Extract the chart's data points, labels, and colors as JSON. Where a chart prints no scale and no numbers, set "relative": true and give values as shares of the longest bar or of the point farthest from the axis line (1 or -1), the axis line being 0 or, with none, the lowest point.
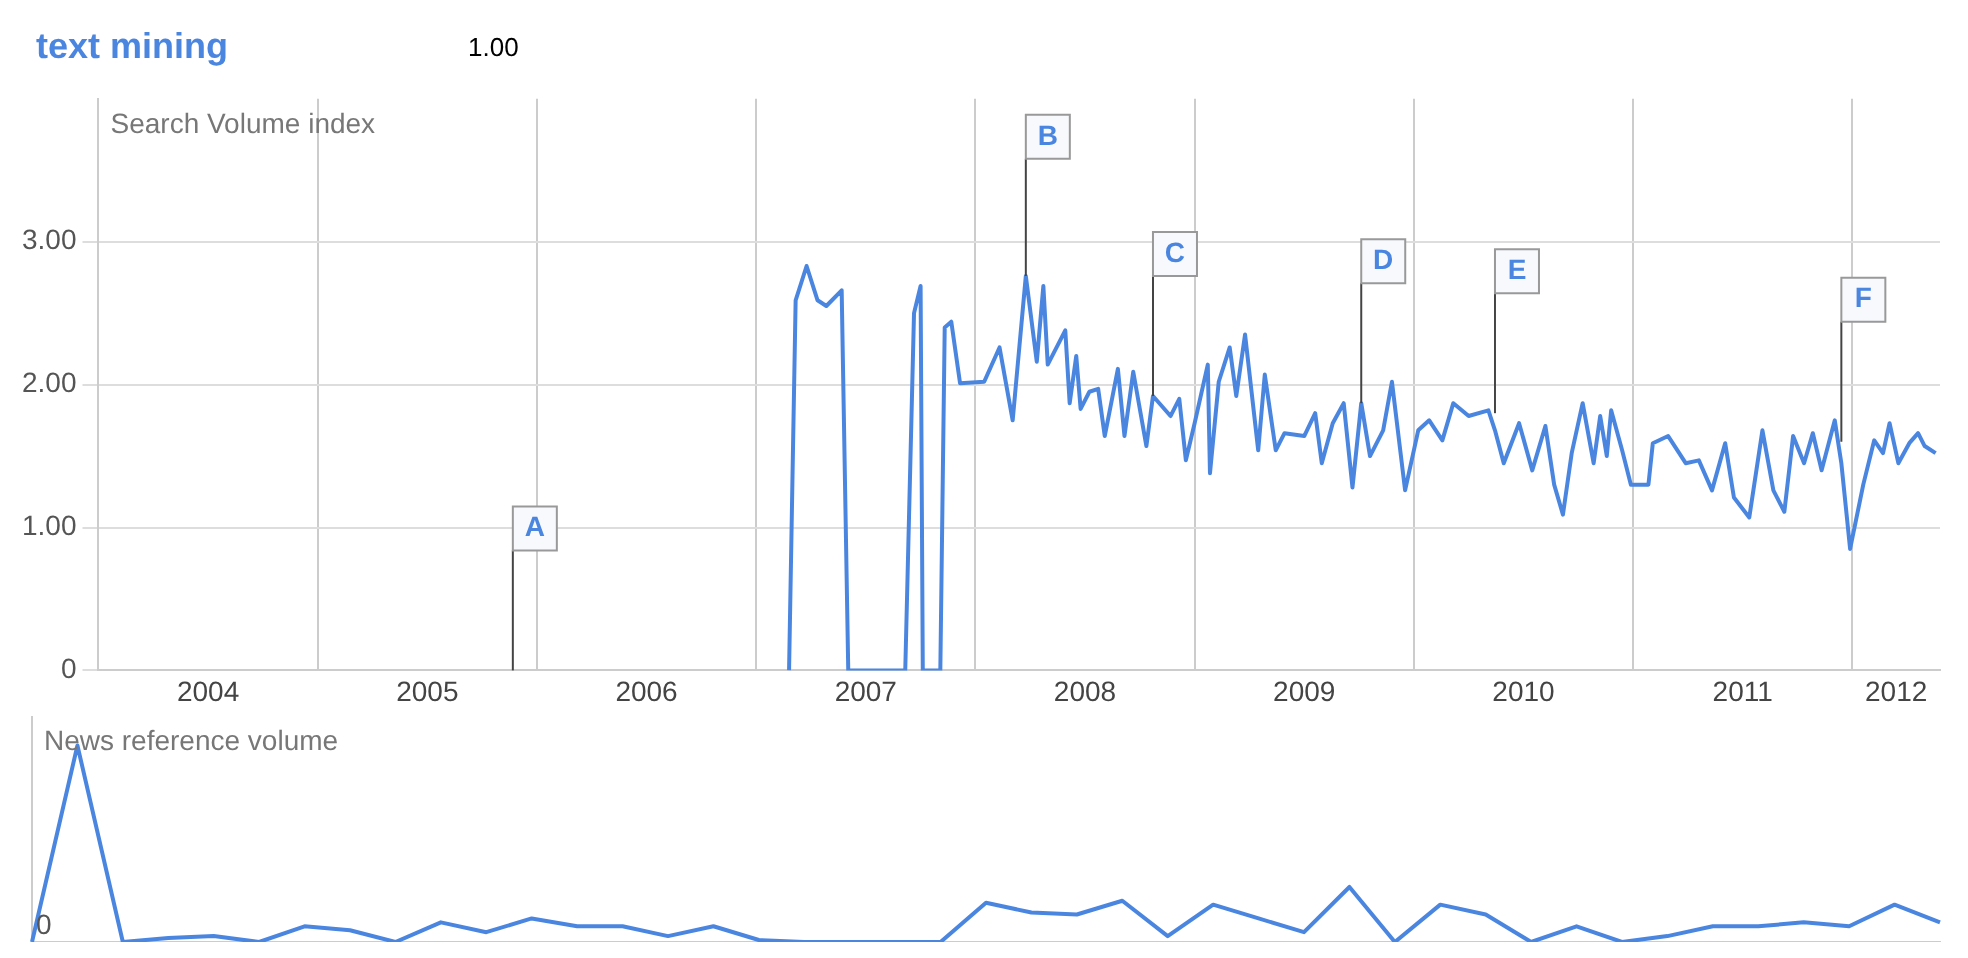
{
  "chart_data": [
    {
      "type": "line",
      "title": "text mining",
      "subtitle": "1.00",
      "ylabel": "Search Volume index",
      "xlim": [
        2004,
        2012.4
      ],
      "ylim": [
        0,
        4
      ],
      "xticks": [
        {
          "value": 2004.5,
          "label": "2004"
        },
        {
          "value": 2005,
          "label": null
        },
        {
          "value": 2005.5,
          "label": "2005"
        },
        {
          "value": 2006,
          "label": null
        },
        {
          "value": 2006.5,
          "label": "2006"
        },
        {
          "value": 2007,
          "label": null
        },
        {
          "value": 2007.5,
          "label": "2007"
        },
        {
          "value": 2008,
          "label": null
        },
        {
          "value": 2008.5,
          "label": "2008"
        },
        {
          "value": 2009,
          "label": null
        },
        {
          "value": 2009.5,
          "label": "2009"
        },
        {
          "value": 2010,
          "label": null
        },
        {
          "value": 2010.5,
          "label": "2010"
        },
        {
          "value": 2011,
          "label": null
        },
        {
          "value": 2011.5,
          "label": "2011"
        },
        {
          "value": 2012,
          "label": null
        },
        {
          "value": 2012.2,
          "label": "2012"
        }
      ],
      "yticks": [
        0,
        {
          "value": 1,
          "label": "1.00"
        },
        {
          "value": 2,
          "label": "2.00"
        },
        {
          "value": 3,
          "label": "3.00"
        }
      ],
      "grid": true,
      "legend": false,
      "marker": "none",
      "ref_lines": [
        {
          "axis": "x",
          "value": 2005.89,
          "label": "A"
        }
      ],
      "annotations": [
        {
          "text": "B",
          "x": 2008.23,
          "y": 2.76
        },
        {
          "text": "C",
          "x": 2008.81,
          "y": 1.92
        },
        {
          "text": "D",
          "x": 2009.76,
          "y": 1.87
        },
        {
          "text": "E",
          "x": 2010.37,
          "y": 1.8
        },
        {
          "text": "F",
          "x": 2011.95,
          "y": 1.6
        }
      ],
      "series": [
        {
          "color": "#4a86e0",
          "x": [
            2007.15,
            2007.18,
            2007.23,
            2007.28,
            2007.32,
            2007.39,
            2007.42,
            2007.68,
            2007.72,
            2007.75,
            2007.76,
            2007.84,
            2007.86,
            2007.89,
            2007.93,
            2008.04,
            2008.11,
            2008.17,
            2008.23,
            2008.28,
            2008.31,
            2008.33,
            2008.41,
            2008.43,
            2008.46,
            2008.48,
            2008.52,
            2008.56,
            2008.59,
            2008.65,
            2008.68,
            2008.72,
            2008.78,
            2008.81,
            2008.89,
            2008.93,
            2008.96,
            2009.0,
            2009.06,
            2009.07,
            2009.11,
            2009.16,
            2009.19,
            2009.23,
            2009.29,
            2009.32,
            2009.37,
            2009.41,
            2009.5,
            2009.55,
            2009.58,
            2009.63,
            2009.68,
            2009.72,
            2009.76,
            2009.8,
            2009.86,
            2009.9,
            2009.96,
            2010.02,
            2010.07,
            2010.13,
            2010.18,
            2010.25,
            2010.34,
            2010.37,
            2010.41,
            2010.48,
            2010.54,
            2010.6,
            2010.64,
            2010.68,
            2010.72,
            2010.77,
            2010.82,
            2010.85,
            2010.88,
            2010.9,
            2010.95,
            2010.99,
            2011.07,
            2011.09,
            2011.16,
            2011.24,
            2011.3,
            2011.36,
            2011.42,
            2011.46,
            2011.53,
            2011.59,
            2011.64,
            2011.69,
            2011.73,
            2011.78,
            2011.82,
            2011.86,
            2011.92,
            2011.95,
            2011.99,
            2012.05,
            2012.1,
            2012.14,
            2012.17,
            2012.21,
            2012.26,
            2012.3,
            2012.33,
            2012.38
          ],
          "values": [
            0,
            2.59,
            2.83,
            2.59,
            2.55,
            2.66,
            0,
            0,
            2.5,
            2.69,
            0,
            0,
            2.4,
            2.44,
            2.01,
            2.02,
            2.26,
            1.75,
            2.76,
            2.16,
            2.69,
            2.14,
            2.38,
            1.87,
            2.2,
            1.83,
            1.95,
            1.97,
            1.64,
            2.11,
            1.64,
            2.09,
            1.57,
            1.92,
            1.78,
            1.9,
            1.47,
            1.73,
            2.14,
            1.38,
            2.02,
            2.26,
            1.92,
            2.35,
            1.54,
            2.07,
            1.54,
            1.66,
            1.64,
            1.8,
            1.45,
            1.73,
            1.87,
            1.28,
            1.87,
            1.5,
            1.68,
            2.02,
            1.26,
            1.68,
            1.75,
            1.61,
            1.87,
            1.78,
            1.82,
            1.68,
            1.45,
            1.73,
            1.4,
            1.71,
            1.3,
            1.09,
            1.52,
            1.87,
            1.45,
            1.78,
            1.5,
            1.82,
            1.54,
            1.3,
            1.3,
            1.59,
            1.64,
            1.45,
            1.47,
            1.26,
            1.59,
            1.21,
            1.07,
            1.68,
            1.26,
            1.11,
            1.64,
            1.45,
            1.66,
            1.4,
            1.75,
            1.45,
            0.85,
            1.3,
            1.61,
            1.52,
            1.73,
            1.45,
            1.59,
            1.66,
            1.57,
            1.52
          ]
        }
      ]
    },
    {
      "type": "line",
      "ylabel": "News reference volume",
      "relative": true,
      "tick_labels": false,
      "categories": [
        null,
        null,
        null,
        null,
        null,
        null,
        null,
        null,
        null,
        null,
        null,
        null,
        null,
        null,
        null,
        null,
        null,
        null,
        null,
        null,
        null,
        null,
        null,
        null,
        null,
        null,
        null,
        null,
        null,
        null,
        null,
        null,
        null,
        null,
        null,
        null,
        null,
        null,
        null,
        null,
        null,
        null,
        null
      ],
      "legend": false,
      "marker": "none",
      "annotations": [
        "0"
      ],
      "series": [
        {
          "color": "#4a86e0",
          "values": [
            0,
            1.0,
            0,
            0.02,
            0.03,
            0,
            0.08,
            0.06,
            0,
            0.1,
            0.05,
            0.12,
            0.08,
            0.08,
            0.03,
            0.08,
            0.01,
            0,
            0,
            0,
            0,
            0.2,
            0.15,
            0.14,
            0.21,
            0.03,
            0.19,
            0.12,
            0.05,
            0.28,
            0,
            0.19,
            0.14,
            0,
            0.08,
            0,
            0.03,
            0.08,
            0.08,
            0.1,
            0.08,
            0.19,
            0.1
          ]
        }
      ]
    }
  ]
}
